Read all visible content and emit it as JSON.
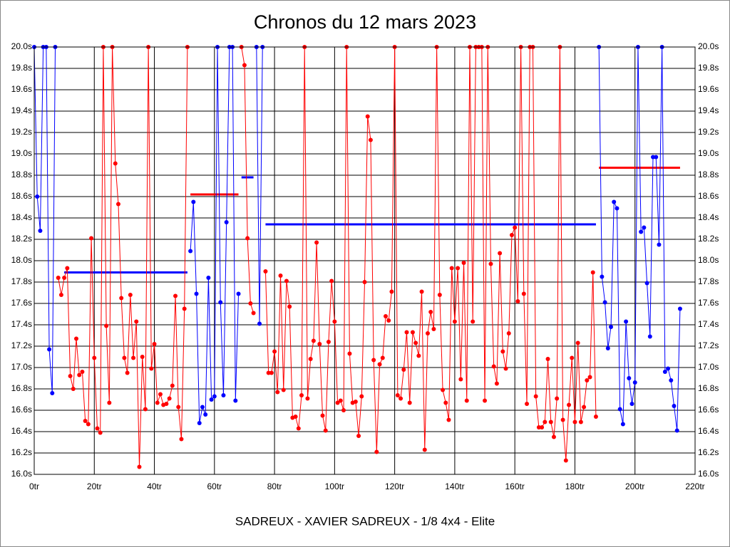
{
  "chart_data": {
    "type": "line",
    "title": "Chronos du 12 mars 2023",
    "xlabel": "SADREUX - XAVIER SADREUX - 1/8 4x4 - Elite",
    "xlim": [
      0,
      220
    ],
    "ylim": [
      16.0,
      20.0
    ],
    "grid": true,
    "xticks": [
      {
        "value": 0,
        "label": "0tr"
      },
      {
        "value": 20,
        "label": "20tr"
      },
      {
        "value": 40,
        "label": "40tr"
      },
      {
        "value": 60,
        "label": "60tr"
      },
      {
        "value": 80,
        "label": "80tr"
      },
      {
        "value": 100,
        "label": "100tr"
      },
      {
        "value": 120,
        "label": "120tr"
      },
      {
        "value": 140,
        "label": "140tr"
      },
      {
        "value": 160,
        "label": "160tr"
      },
      {
        "value": 180,
        "label": "180tr"
      },
      {
        "value": 200,
        "label": "200tr"
      },
      {
        "value": 220,
        "label": "220tr"
      }
    ],
    "yticks": [
      {
        "value": 16.0,
        "label": "16.0s"
      },
      {
        "value": 16.2,
        "label": "16.2s"
      },
      {
        "value": 16.4,
        "label": "16.4s"
      },
      {
        "value": 16.6,
        "label": "16.6s"
      },
      {
        "value": 16.8,
        "label": "16.8s"
      },
      {
        "value": 17.0,
        "label": "17.0s"
      },
      {
        "value": 17.2,
        "label": "17.2s"
      },
      {
        "value": 17.4,
        "label": "17.4s"
      },
      {
        "value": 17.6,
        "label": "17.6s"
      },
      {
        "value": 17.8,
        "label": "17.8s"
      },
      {
        "value": 18.0,
        "label": "18.0s"
      },
      {
        "value": 18.2,
        "label": "18.2s"
      },
      {
        "value": 18.4,
        "label": "18.4s"
      },
      {
        "value": 18.6,
        "label": "18.6s"
      },
      {
        "value": 18.8,
        "label": "18.8s"
      },
      {
        "value": 19.0,
        "label": "19.0s"
      },
      {
        "value": 19.2,
        "label": "19.2s"
      },
      {
        "value": 19.4,
        "label": "19.4s"
      },
      {
        "value": 19.6,
        "label": "19.6s"
      },
      {
        "value": 19.8,
        "label": "19.8s"
      },
      {
        "value": 20.0,
        "label": "20.0s"
      }
    ],
    "x": [
      0,
      1,
      2,
      3,
      4,
      5,
      6,
      7,
      8,
      9,
      10,
      11,
      12,
      13,
      14,
      15,
      16,
      17,
      18,
      19,
      20,
      21,
      22,
      23,
      24,
      25,
      26,
      27,
      28,
      29,
      30,
      31,
      32,
      33,
      34,
      35,
      36,
      37,
      38,
      39,
      40,
      41,
      42,
      43,
      44,
      45,
      46,
      47,
      48,
      49,
      50,
      51,
      52,
      53,
      54,
      55,
      56,
      57,
      58,
      59,
      60,
      61,
      62,
      63,
      64,
      65,
      66,
      67,
      68,
      69,
      70,
      71,
      72,
      73,
      74,
      75,
      76,
      77,
      78,
      79,
      80,
      81,
      82,
      83,
      84,
      85,
      86,
      87,
      88,
      89,
      90,
      91,
      92,
      93,
      94,
      95,
      96,
      97,
      98,
      99,
      100,
      101,
      102,
      103,
      104,
      105,
      106,
      107,
      108,
      109,
      110,
      111,
      112,
      113,
      114,
      115,
      116,
      117,
      118,
      119,
      120,
      121,
      122,
      123,
      124,
      125,
      126,
      127,
      128,
      129,
      130,
      131,
      132,
      133,
      134,
      135,
      136,
      137,
      138,
      139,
      140,
      141,
      142,
      143,
      144,
      145,
      146,
      147,
      148,
      149,
      150,
      151,
      152,
      153,
      154,
      155,
      156,
      157,
      158,
      159,
      160,
      161,
      162,
      163,
      164,
      165,
      166,
      167,
      168,
      169,
      170,
      171,
      172,
      173,
      174,
      175,
      176,
      177,
      178,
      179,
      180,
      181,
      182,
      183,
      184,
      185,
      186,
      187,
      188,
      189,
      190,
      191,
      192,
      193,
      194,
      195,
      196,
      197,
      198,
      199,
      200,
      201,
      202,
      203,
      204,
      205,
      206,
      207,
      208,
      209,
      210,
      211,
      212,
      213,
      214,
      215
    ],
    "series": [
      {
        "color": "#0000ff",
        "values": [
          20.0,
          18.6,
          18.28,
          20.0,
          20.0,
          17.17,
          16.76,
          20.0,
          null,
          null,
          null,
          null,
          null,
          null,
          null,
          null,
          null,
          null,
          null,
          null,
          null,
          null,
          null,
          null,
          null,
          null,
          null,
          null,
          null,
          null,
          null,
          null,
          null,
          null,
          null,
          null,
          null,
          null,
          null,
          null,
          null,
          null,
          null,
          null,
          null,
          null,
          null,
          null,
          null,
          null,
          null,
          null,
          18.09,
          18.55,
          17.69,
          16.48,
          16.63,
          16.56,
          17.84,
          16.7,
          16.73,
          20.0,
          17.61,
          16.74,
          18.36,
          20.0,
          20.0,
          16.69,
          17.69,
          null,
          null,
          null,
          null,
          null,
          20.0,
          17.41,
          20.0,
          null,
          null,
          null,
          null,
          null,
          null,
          null,
          null,
          null,
          null,
          null,
          null,
          null,
          null,
          null,
          null,
          null,
          null,
          null,
          null,
          null,
          null,
          null,
          null,
          null,
          null,
          null,
          null,
          null,
          null,
          null,
          null,
          null,
          null,
          null,
          null,
          null,
          null,
          null,
          null,
          null,
          null,
          null,
          null,
          null,
          null,
          null,
          null,
          null,
          null,
          null,
          null,
          null,
          null,
          null,
          null,
          null,
          null,
          null,
          null,
          null,
          null,
          null,
          null,
          null,
          null,
          null,
          null,
          null,
          null,
          null,
          null,
          null,
          null,
          null,
          null,
          null,
          null,
          null,
          null,
          null,
          null,
          null,
          null,
          null,
          null,
          null,
          null,
          null,
          null,
          null,
          null,
          null,
          null,
          null,
          null,
          null,
          null,
          null,
          null,
          null,
          null,
          null,
          null,
          null,
          null,
          null,
          null,
          null,
          null,
          null,
          20.0,
          17.85,
          17.61,
          17.18,
          17.38,
          18.55,
          18.49,
          16.61,
          16.47,
          17.43,
          16.9,
          16.66,
          16.86,
          20.0,
          18.27,
          18.31,
          17.79,
          17.29,
          18.97,
          18.97,
          18.15,
          20.0,
          16.96,
          16.99,
          16.88,
          16.64,
          16.41,
          17.55
        ]
      },
      {
        "color": "#ff0000",
        "values": [
          null,
          null,
          null,
          null,
          null,
          null,
          null,
          null,
          17.84,
          17.68,
          17.84,
          17.93,
          16.92,
          16.8,
          17.27,
          16.93,
          16.96,
          16.5,
          16.47,
          18.21,
          17.09,
          16.43,
          16.39,
          20.0,
          17.39,
          16.67,
          20.0,
          18.91,
          18.53,
          17.65,
          17.09,
          16.95,
          17.68,
          17.09,
          17.43,
          16.07,
          17.1,
          16.61,
          20.0,
          16.99,
          17.22,
          16.67,
          16.75,
          16.65,
          16.66,
          16.71,
          16.83,
          17.67,
          16.63,
          16.33,
          17.55,
          20.0,
          null,
          null,
          null,
          null,
          null,
          null,
          null,
          null,
          null,
          null,
          null,
          null,
          null,
          null,
          null,
          null,
          null,
          20.0,
          19.83,
          18.21,
          17.6,
          17.51,
          null,
          null,
          null,
          17.9,
          16.95,
          16.95,
          17.15,
          16.77,
          17.86,
          16.79,
          17.81,
          17.57,
          16.53,
          16.54,
          16.43,
          16.74,
          20.0,
          16.71,
          17.08,
          17.25,
          18.17,
          17.22,
          16.55,
          16.41,
          17.24,
          17.81,
          17.43,
          16.67,
          16.69,
          16.6,
          20.0,
          17.13,
          16.67,
          16.68,
          16.36,
          16.73,
          17.8,
          19.35,
          19.13,
          17.07,
          16.21,
          17.03,
          17.09,
          17.48,
          17.44,
          17.71,
          20.0,
          16.74,
          16.71,
          16.98,
          17.33,
          16.67,
          17.33,
          17.23,
          17.11,
          17.71,
          16.23,
          17.32,
          17.52,
          17.36,
          20.0,
          17.68,
          16.79,
          16.67,
          16.51,
          17.93,
          17.43,
          17.93,
          16.89,
          17.98,
          16.69,
          20.0,
          17.43,
          20.0,
          20.0,
          20.0,
          16.69,
          20.0,
          17.97,
          17.01,
          16.85,
          18.07,
          17.15,
          16.99,
          17.32,
          18.24,
          18.31,
          17.62,
          20.0,
          17.69,
          16.66,
          20.0,
          20.0,
          16.73,
          16.44,
          16.44,
          16.49,
          17.08,
          16.49,
          16.35,
          16.71,
          20.0,
          16.51,
          16.13,
          16.65,
          17.09,
          16.49,
          17.23,
          16.49,
          16.63,
          16.88,
          16.91,
          17.89,
          16.54,
          null,
          null,
          null,
          null,
          null,
          null,
          null,
          null,
          null,
          null,
          null,
          null,
          null,
          null,
          null,
          null,
          null,
          null,
          null,
          null,
          null,
          null,
          null,
          null,
          null,
          null,
          null,
          null
        ]
      }
    ],
    "averages": [
      {
        "color": "#0000ff",
        "value": 17.89,
        "x": [
          10,
          51
        ]
      },
      {
        "color": "#ff0000",
        "value": 18.62,
        "x": [
          52,
          68
        ]
      },
      {
        "color": "#0000ff",
        "value": 18.78,
        "x": [
          69,
          73
        ]
      },
      {
        "color": "#0000ff",
        "value": 18.34,
        "x": [
          77,
          187
        ]
      },
      {
        "color": "#ff0000",
        "value": 18.87,
        "x": [
          188,
          215
        ]
      }
    ]
  }
}
